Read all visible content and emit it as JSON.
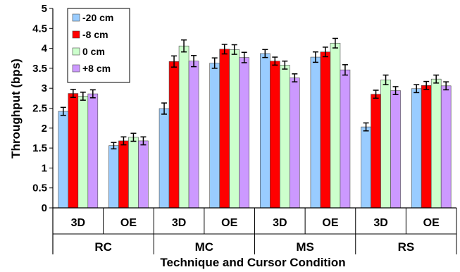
{
  "chart_data": {
    "type": "bar",
    "title": "",
    "xlabel": "Technique and Cursor Condition",
    "ylabel": "Throughput (bps)",
    "ylim": [
      0,
      5
    ],
    "yticks": [
      "0",
      "0.5",
      "1",
      "1.5",
      "2",
      "2.5",
      "3",
      "3.5",
      "4",
      "4.5",
      "5"
    ],
    "grid": false,
    "legend_position": "top-left",
    "groups": [
      "RC",
      "MC",
      "MS",
      "RS"
    ],
    "categories": [
      "3D",
      "OE",
      "3D",
      "OE",
      "3D",
      "OE",
      "3D",
      "OE"
    ],
    "series": [
      {
        "name": "-20 cm",
        "color": "#99ccff",
        "values": [
          2.42,
          1.56,
          2.49,
          3.63,
          3.87,
          3.78,
          2.03,
          2.99
        ],
        "errors": [
          0.1,
          0.08,
          0.14,
          0.13,
          0.1,
          0.13,
          0.1,
          0.1
        ]
      },
      {
        "name": "-8 cm",
        "color": "#ff0000",
        "values": [
          2.87,
          1.68,
          3.67,
          3.98,
          3.68,
          3.91,
          2.85,
          3.07
        ],
        "errors": [
          0.1,
          0.1,
          0.14,
          0.12,
          0.1,
          0.12,
          0.1,
          0.1
        ]
      },
      {
        "name": "0 cm",
        "color": "#ccffcc",
        "values": [
          2.8,
          1.77,
          4.06,
          3.97,
          3.58,
          4.13,
          3.21,
          3.23
        ],
        "errors": [
          0.1,
          0.1,
          0.15,
          0.12,
          0.1,
          0.12,
          0.12,
          0.1
        ]
      },
      {
        "name": "+8 cm",
        "color": "#cc99ff",
        "values": [
          2.86,
          1.68,
          3.68,
          3.77,
          3.26,
          3.46,
          2.94,
          3.06
        ],
        "errors": [
          0.1,
          0.1,
          0.14,
          0.13,
          0.1,
          0.13,
          0.1,
          0.1
        ]
      }
    ]
  }
}
